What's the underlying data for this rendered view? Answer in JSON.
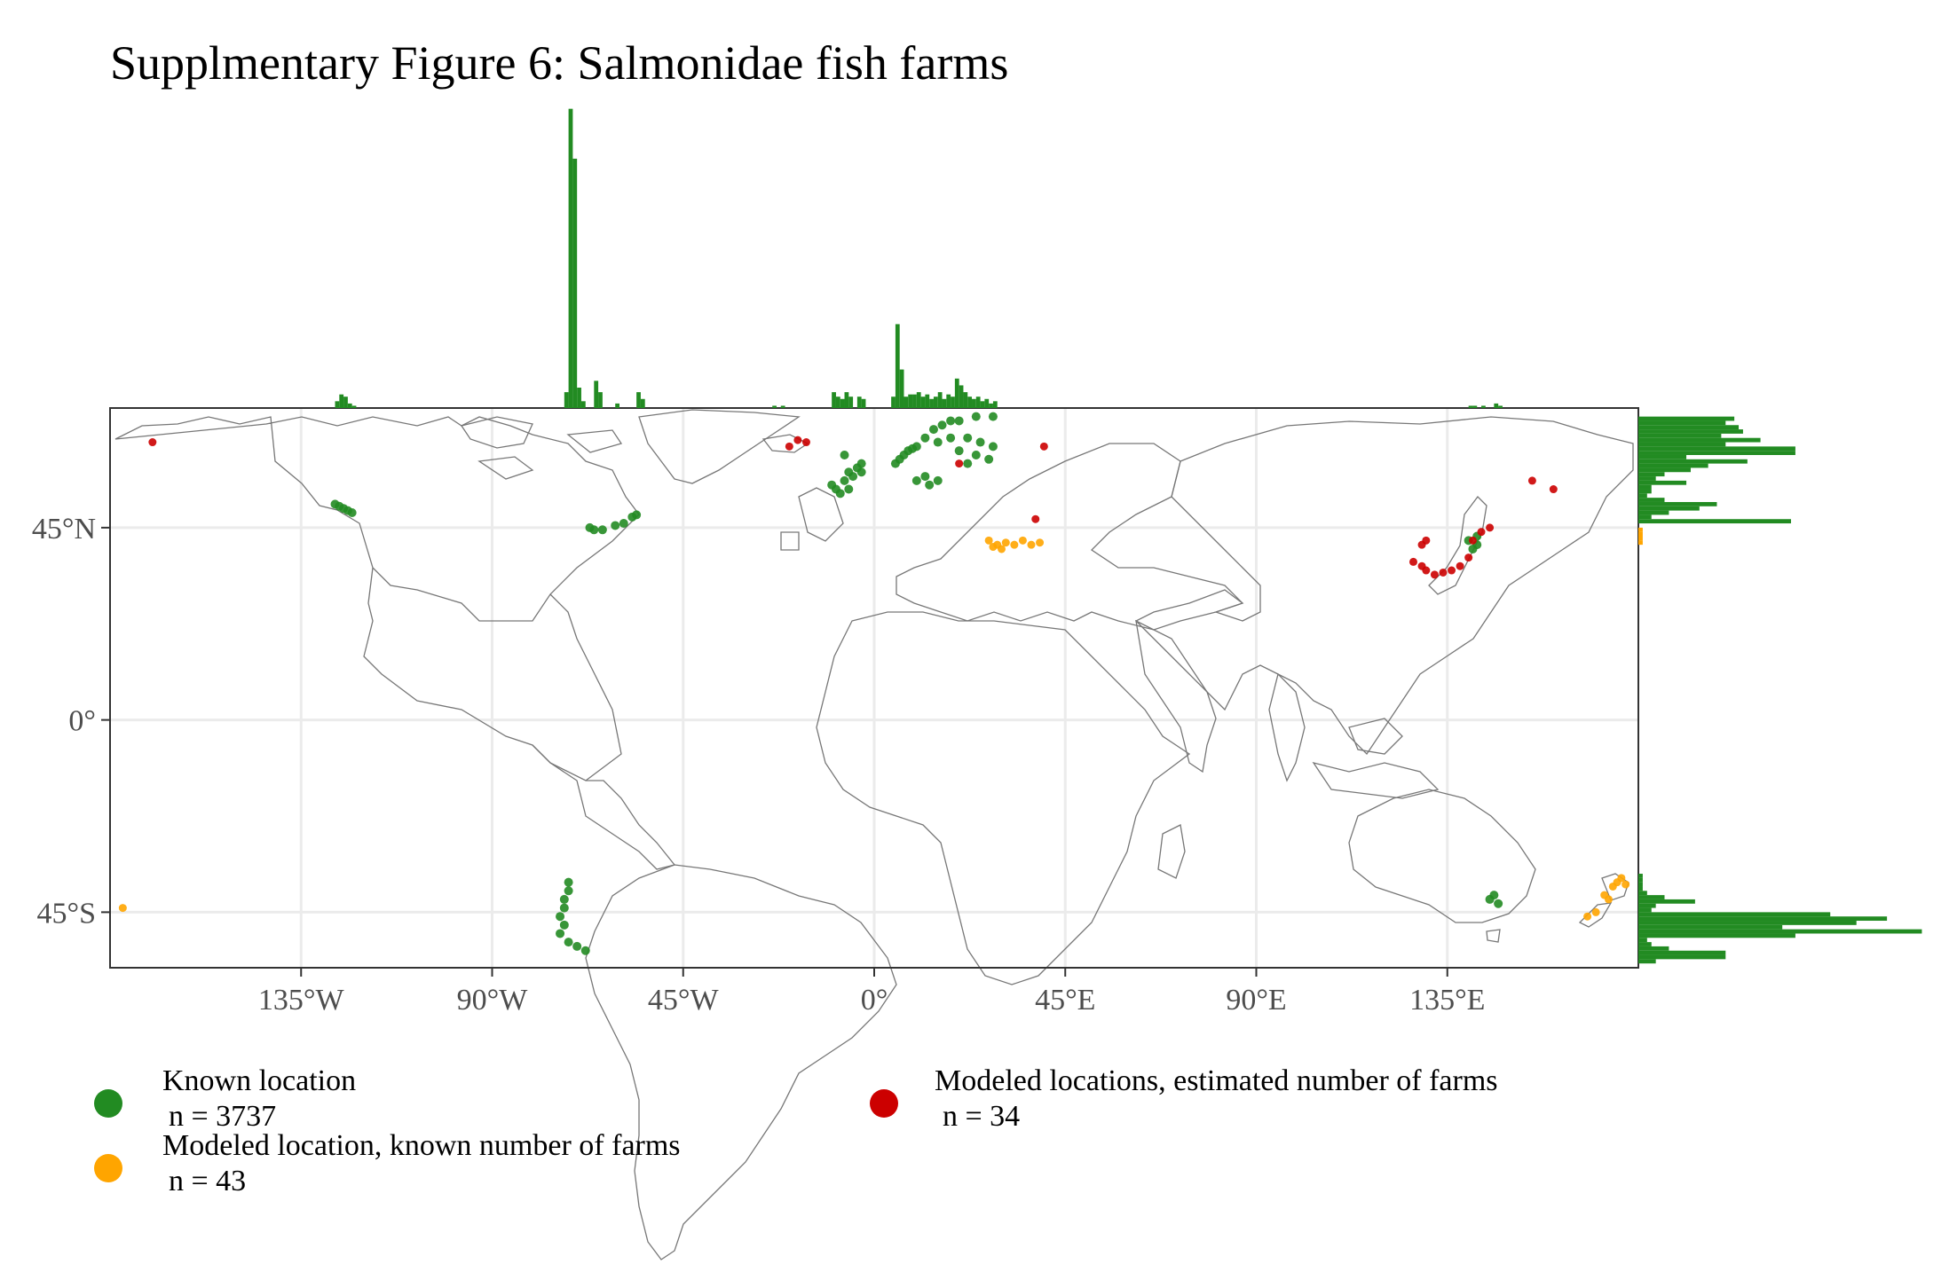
{
  "title": "Supplmentary Figure 6: Salmonidae fish farms",
  "colors": {
    "known": "#228B22",
    "modeled_known_number": "#FFA500",
    "modeled_estimated": "#CC0000",
    "grid": "#ebebeb",
    "land_outline": "#777777",
    "panel_border": "#333333"
  },
  "axes": {
    "x_ticks": [
      {
        "lon": -135,
        "label": "135°W"
      },
      {
        "lon": -90,
        "label": "90°W"
      },
      {
        "lon": -45,
        "label": "45°W"
      },
      {
        "lon": 0,
        "label": "0°"
      },
      {
        "lon": 45,
        "label": "45°E"
      },
      {
        "lon": 90,
        "label": "90°E"
      },
      {
        "lon": 135,
        "label": "135°E"
      }
    ],
    "y_ticks": [
      {
        "lat": 45,
        "label": "45°N"
      },
      {
        "lat": 0,
        "label": "0°"
      },
      {
        "lat": -45,
        "label": "45°S"
      }
    ],
    "lon_range": [
      -180,
      180
    ],
    "lat_range": [
      -58,
      73
    ]
  },
  "legend": [
    {
      "key": "known",
      "label": "Known location",
      "n": "n = 3737"
    },
    {
      "key": "modeled_known_number",
      "label": "Modeled location, known number of farms",
      "n": "n = 43"
    },
    {
      "key": "modeled_estimated",
      "label": "Modeled locations, estimated number of farms",
      "n": "n = 34"
    }
  ],
  "chart_data": {
    "type": "scatter",
    "farms": {
      "known": [
        [
          -124,
          49
        ],
        [
          -127,
          50.5
        ],
        [
          -126,
          50
        ],
        [
          -125,
          49.5
        ],
        [
          -123,
          48.5
        ],
        [
          -67,
          45
        ],
        [
          -66,
          44.5
        ],
        [
          -61,
          45.5
        ],
        [
          -64,
          44.5
        ],
        [
          -56,
          48
        ],
        [
          -57,
          47.5
        ],
        [
          -59,
          46
        ],
        [
          -73,
          -42
        ],
        [
          -73,
          -44
        ],
        [
          -74,
          -46
        ],
        [
          -72,
          -40
        ],
        [
          -73,
          -48
        ],
        [
          -74,
          -50
        ],
        [
          -72,
          -52
        ],
        [
          -70,
          -53
        ],
        [
          -68,
          -54
        ],
        [
          -72,
          -38
        ],
        [
          -8,
          53
        ],
        [
          -9,
          54
        ],
        [
          -10,
          55
        ],
        [
          -5,
          57
        ],
        [
          -6,
          58
        ],
        [
          -4,
          59
        ],
        [
          -3,
          58
        ],
        [
          -7,
          56
        ],
        [
          -6,
          54
        ],
        [
          -3,
          60
        ],
        [
          -7,
          62
        ],
        [
          5,
          60
        ],
        [
          6,
          61
        ],
        [
          8,
          63
        ],
        [
          10,
          64
        ],
        [
          12,
          66
        ],
        [
          14,
          68
        ],
        [
          16,
          69
        ],
        [
          18,
          70
        ],
        [
          20,
          70
        ],
        [
          24,
          71
        ],
        [
          28,
          71
        ],
        [
          7,
          62
        ],
        [
          9,
          63.5
        ],
        [
          15,
          65
        ],
        [
          18,
          66
        ],
        [
          22,
          66
        ],
        [
          25,
          65
        ],
        [
          28,
          64
        ],
        [
          24,
          62
        ],
        [
          22,
          60
        ],
        [
          27,
          61
        ],
        [
          20,
          63
        ],
        [
          12,
          57
        ],
        [
          15,
          56
        ],
        [
          10,
          56
        ],
        [
          13,
          55
        ],
        [
          145,
          -42
        ],
        [
          147,
          -43
        ],
        [
          146,
          -41
        ],
        [
          141,
          40
        ],
        [
          142,
          41
        ],
        [
          140,
          42
        ],
        [
          142,
          43
        ]
      ],
      "modeled_known_number": [
        [
          -177,
          -44
        ],
        [
          27,
          42
        ],
        [
          29,
          41
        ],
        [
          31,
          41.5
        ],
        [
          33,
          41
        ],
        [
          35,
          42
        ],
        [
          37,
          41
        ],
        [
          39,
          41.5
        ],
        [
          30,
          40
        ],
        [
          28,
          40.5
        ],
        [
          172,
          -41
        ],
        [
          174,
          -39
        ],
        [
          175,
          -38
        ],
        [
          176,
          -37
        ],
        [
          177,
          -38.5
        ],
        [
          170,
          -45
        ],
        [
          168,
          -46
        ],
        [
          173,
          -42
        ]
      ],
      "modeled_estimated": [
        [
          -170,
          65
        ],
        [
          -16,
          65
        ],
        [
          -20,
          64
        ],
        [
          -18,
          65.5
        ],
        [
          40,
          64
        ],
        [
          38,
          47
        ],
        [
          20,
          60
        ],
        [
          130,
          35
        ],
        [
          132,
          34
        ],
        [
          134,
          34.5
        ],
        [
          136,
          35
        ],
        [
          138,
          36
        ],
        [
          140,
          38
        ],
        [
          141,
          42
        ],
        [
          143,
          44
        ],
        [
          145,
          45
        ],
        [
          130,
          42
        ],
        [
          129,
          36
        ],
        [
          160,
          54
        ],
        [
          155,
          56
        ],
        [
          127,
          37
        ],
        [
          129,
          41
        ]
      ]
    },
    "top_histogram": {
      "axis": "longitude",
      "bin_width_deg": 1,
      "bins": [
        [
          -127,
          3
        ],
        [
          -126,
          6
        ],
        [
          -125,
          5
        ],
        [
          -124,
          2
        ],
        [
          -123,
          1
        ],
        [
          -73,
          7
        ],
        [
          -72,
          132
        ],
        [
          -71,
          110
        ],
        [
          -70,
          9
        ],
        [
          -69,
          3
        ],
        [
          -66,
          12
        ],
        [
          -65,
          7
        ],
        [
          -61,
          2
        ],
        [
          -56,
          7
        ],
        [
          -55,
          4
        ],
        [
          -24,
          1
        ],
        [
          -22,
          1
        ],
        [
          -10,
          7
        ],
        [
          -9,
          5
        ],
        [
          -8,
          4
        ],
        [
          -7,
          7
        ],
        [
          -6,
          5
        ],
        [
          -4,
          5
        ],
        [
          -3,
          4
        ],
        [
          4,
          5
        ],
        [
          5,
          37
        ],
        [
          6,
          17
        ],
        [
          7,
          5
        ],
        [
          8,
          6
        ],
        [
          9,
          6
        ],
        [
          10,
          7
        ],
        [
          11,
          5
        ],
        [
          12,
          6
        ],
        [
          13,
          4
        ],
        [
          14,
          5
        ],
        [
          15,
          7
        ],
        [
          16,
          4
        ],
        [
          17,
          6
        ],
        [
          18,
          5
        ],
        [
          19,
          13
        ],
        [
          20,
          10
        ],
        [
          21,
          7
        ],
        [
          22,
          5
        ],
        [
          23,
          4
        ],
        [
          24,
          5
        ],
        [
          25,
          3
        ],
        [
          26,
          4
        ],
        [
          27,
          2
        ],
        [
          28,
          3
        ],
        [
          140,
          1
        ],
        [
          141,
          1
        ],
        [
          143,
          1
        ],
        [
          146,
          2
        ],
        [
          147,
          1
        ]
      ]
    },
    "right_histogram": {
      "axis": "latitude",
      "bin_width_deg": 1,
      "bins": [
        [
          70,
          22
        ],
        [
          69,
          20
        ],
        [
          68,
          23
        ],
        [
          67,
          24
        ],
        [
          66,
          19
        ],
        [
          65,
          28
        ],
        [
          64,
          20
        ],
        [
          63,
          36
        ],
        [
          62,
          36
        ],
        [
          61,
          11
        ],
        [
          60,
          25
        ],
        [
          59,
          16
        ],
        [
          58,
          12
        ],
        [
          57,
          6
        ],
        [
          56,
          4
        ],
        [
          55,
          11
        ],
        [
          54,
          3
        ],
        [
          53,
          3
        ],
        [
          52,
          2
        ],
        [
          51,
          6
        ],
        [
          50,
          18
        ],
        [
          49,
          14
        ],
        [
          48,
          7
        ],
        [
          47,
          3
        ],
        [
          46,
          35
        ],
        [
          44,
          1
        ],
        [
          43,
          1
        ],
        [
          42,
          1
        ],
        [
          41,
          1
        ],
        [
          -37,
          1
        ],
        [
          -38,
          1
        ],
        [
          -39,
          1
        ],
        [
          -40,
          1
        ],
        [
          -41,
          2
        ],
        [
          -42,
          6
        ],
        [
          -43,
          13
        ],
        [
          -44,
          4
        ],
        [
          -45,
          3
        ],
        [
          -46,
          44
        ],
        [
          -47,
          57
        ],
        [
          -48,
          50
        ],
        [
          -49,
          33
        ],
        [
          -50,
          65
        ],
        [
          -51,
          36
        ],
        [
          -52,
          2
        ],
        [
          -53,
          3
        ],
        [
          -54,
          7
        ],
        [
          -55,
          20
        ],
        [
          -56,
          20
        ],
        [
          -57,
          4
        ]
      ],
      "max_reference": 70
    }
  }
}
